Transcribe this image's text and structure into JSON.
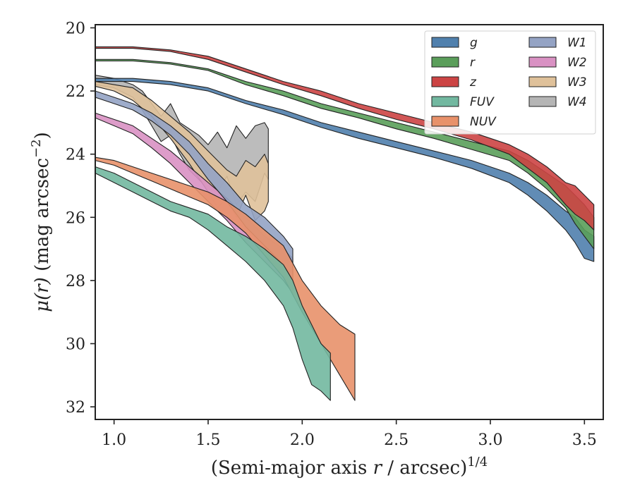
{
  "chart_data": {
    "type": "area",
    "xlabel": "(Semi-major axis r / arcsec)^1/4",
    "xlabel_parts": {
      "pre": "(Semi-major axis ",
      "var": "r",
      "post": " / arcsec)",
      "sup": "1/4"
    },
    "ylabel": "μ(r) (mag arcsec⁻²)",
    "ylabel_parts": {
      "mu": "μ(",
      "var": "r",
      "close": ")",
      "unit": " (mag arcsec",
      "sup": "−2",
      "end": ")"
    },
    "xlim": [
      0.9,
      3.6
    ],
    "ylim": [
      32.4,
      19.9
    ],
    "y_inverted": true,
    "xticks": [
      1.0,
      1.5,
      2.0,
      2.5,
      3.0,
      3.5
    ],
    "xtick_labels": [
      "1.0",
      "1.5",
      "2.0",
      "2.5",
      "3.0",
      "3.5"
    ],
    "yticks": [
      20,
      22,
      24,
      26,
      28,
      30,
      32
    ],
    "ytick_labels": [
      "20",
      "22",
      "24",
      "26",
      "28",
      "30",
      "32"
    ],
    "grid": false,
    "legend_placement": "top-right",
    "legend_columns": 2,
    "series": [
      {
        "name": "g",
        "color": "#5080ad",
        "x": [
          0.9,
          1.1,
          1.3,
          1.5,
          1.7,
          1.9,
          2.1,
          2.3,
          2.5,
          2.7,
          2.9,
          3.1,
          3.2,
          3.3,
          3.4,
          3.45,
          3.5,
          3.55
        ],
        "y_bright": [
          21.6,
          21.6,
          21.7,
          21.9,
          22.3,
          22.6,
          23.0,
          23.3,
          23.6,
          23.9,
          24.2,
          24.6,
          24.9,
          25.3,
          25.8,
          26.0,
          26.4,
          26.6
        ],
        "y_faint": [
          21.7,
          21.7,
          21.8,
          22.0,
          22.4,
          22.75,
          23.15,
          23.5,
          23.8,
          24.1,
          24.45,
          24.9,
          25.3,
          25.8,
          26.4,
          26.8,
          27.3,
          27.4
        ]
      },
      {
        "name": "r",
        "color": "#5a9e5a",
        "x": [
          0.9,
          1.1,
          1.3,
          1.5,
          1.7,
          1.9,
          2.1,
          2.3,
          2.5,
          2.7,
          2.9,
          3.1,
          3.2,
          3.3,
          3.4,
          3.45,
          3.5,
          3.55
        ],
        "y_bright": [
          21.0,
          21.0,
          21.1,
          21.3,
          21.7,
          22.0,
          22.4,
          22.7,
          23.0,
          23.3,
          23.6,
          23.9,
          24.2,
          24.6,
          25.0,
          25.3,
          25.6,
          26.0
        ],
        "y_faint": [
          21.05,
          21.05,
          21.15,
          21.35,
          21.8,
          22.15,
          22.55,
          22.85,
          23.2,
          23.5,
          23.85,
          24.2,
          24.6,
          25.1,
          25.7,
          26.2,
          26.6,
          27.0
        ]
      },
      {
        "name": "z",
        "color": "#cc4444",
        "x": [
          0.9,
          1.1,
          1.3,
          1.5,
          1.7,
          1.9,
          2.1,
          2.3,
          2.5,
          2.7,
          2.9,
          3.1,
          3.2,
          3.3,
          3.4,
          3.45,
          3.5,
          3.55
        ],
        "y_bright": [
          20.6,
          20.6,
          20.7,
          20.9,
          21.3,
          21.7,
          22.0,
          22.4,
          22.7,
          23.0,
          23.3,
          23.7,
          24.0,
          24.4,
          24.9,
          25.0,
          25.3,
          25.6
        ],
        "y_faint": [
          20.65,
          20.65,
          20.75,
          21.0,
          21.4,
          21.8,
          22.15,
          22.55,
          22.9,
          23.2,
          23.55,
          24.0,
          24.45,
          24.9,
          25.6,
          25.9,
          26.1,
          26.4
        ]
      },
      {
        "name": "FUV",
        "color": "#72b8a0",
        "x": [
          0.9,
          1.0,
          1.1,
          1.2,
          1.3,
          1.4,
          1.5,
          1.6,
          1.7,
          1.8,
          1.9,
          1.95,
          2.0,
          2.05,
          2.1,
          2.15
        ],
        "y_bright": [
          24.4,
          24.6,
          24.9,
          25.2,
          25.5,
          25.7,
          25.9,
          26.3,
          26.6,
          27.0,
          27.5,
          28.0,
          28.8,
          29.4,
          30.0,
          30.3
        ],
        "y_faint": [
          24.6,
          24.9,
          25.2,
          25.5,
          25.8,
          26.0,
          26.4,
          26.9,
          27.4,
          28.0,
          28.8,
          29.5,
          30.5,
          31.3,
          31.5,
          31.8
        ]
      },
      {
        "name": "NUV",
        "color": "#e8916a",
        "x": [
          0.9,
          1.0,
          1.1,
          1.2,
          1.3,
          1.4,
          1.5,
          1.6,
          1.7,
          1.8,
          1.9,
          2.0,
          2.1,
          2.2,
          2.28
        ],
        "y_bright": [
          24.1,
          24.2,
          24.4,
          24.6,
          24.8,
          25.0,
          25.2,
          25.5,
          25.9,
          26.4,
          26.9,
          28.0,
          28.8,
          29.4,
          29.7
        ],
        "y_faint": [
          24.2,
          24.35,
          24.6,
          24.85,
          25.1,
          25.35,
          25.6,
          26.0,
          26.5,
          27.2,
          27.9,
          29.0,
          30.0,
          31.0,
          31.8
        ]
      },
      {
        "name": "W1",
        "color": "#94a3c4",
        "x": [
          0.9,
          1.0,
          1.1,
          1.2,
          1.3,
          1.4,
          1.5,
          1.6,
          1.7,
          1.8,
          1.9,
          1.95
        ],
        "y_bright": [
          22.0,
          22.2,
          22.4,
          22.7,
          23.1,
          23.6,
          24.3,
          24.9,
          25.6,
          26.0,
          26.6,
          27.0
        ],
        "y_faint": [
          22.2,
          22.4,
          22.6,
          22.95,
          23.4,
          24.0,
          24.8,
          25.5,
          26.3,
          26.9,
          27.5,
          28.0
        ]
      },
      {
        "name": "W2",
        "color": "#d991c3",
        "x": [
          0.9,
          1.0,
          1.1,
          1.2,
          1.3,
          1.4,
          1.5,
          1.6,
          1.7,
          1.8,
          1.9,
          1.95
        ],
        "y_bright": [
          22.7,
          22.9,
          23.1,
          23.5,
          23.9,
          24.4,
          24.9,
          25.4,
          26.0,
          26.6,
          27.0,
          27.3
        ],
        "y_faint": [
          22.85,
          23.1,
          23.35,
          23.8,
          24.3,
          24.9,
          25.5,
          26.1,
          26.8,
          27.4,
          28.0,
          28.4
        ]
      },
      {
        "name": "W3",
        "color": "#dfc19a",
        "x": [
          0.9,
          1.0,
          1.1,
          1.2,
          1.3,
          1.4,
          1.5,
          1.55,
          1.6,
          1.65,
          1.7,
          1.75,
          1.8,
          1.82
        ],
        "y_bright": [
          21.7,
          21.8,
          21.9,
          22.3,
          22.8,
          23.3,
          23.9,
          24.2,
          24.5,
          24.7,
          24.2,
          24.4,
          24.0,
          24.3
        ],
        "y_faint": [
          21.85,
          22.0,
          22.3,
          22.8,
          23.5,
          24.3,
          25.2,
          25.7,
          25.4,
          26.0,
          25.3,
          26.1,
          25.8,
          25.5
        ]
      },
      {
        "name": "W4",
        "color": "#b5b5b5",
        "x": [
          0.9,
          1.0,
          1.1,
          1.15,
          1.2,
          1.25,
          1.3,
          1.35,
          1.4,
          1.45,
          1.5,
          1.55,
          1.6,
          1.65,
          1.7,
          1.75,
          1.8,
          1.82
        ],
        "y_bright": [
          21.5,
          21.6,
          21.8,
          22.0,
          22.4,
          22.8,
          22.4,
          23.0,
          23.2,
          23.4,
          23.7,
          23.3,
          23.8,
          23.1,
          23.5,
          23.1,
          23.0,
          23.2
        ],
        "y_faint": [
          21.8,
          21.9,
          22.2,
          22.6,
          23.1,
          23.6,
          23.4,
          24.0,
          24.5,
          24.8,
          25.1,
          25.2,
          24.7,
          25.6,
          25.2,
          25.5,
          24.6,
          24.8
        ]
      }
    ],
    "legend_entries": [
      {
        "label": "g",
        "series": 0
      },
      {
        "label": "r",
        "series": 1
      },
      {
        "label": "z",
        "series": 2
      },
      {
        "label": "FUV",
        "series": 3
      },
      {
        "label": "NUV",
        "series": 4
      },
      {
        "label": "W1",
        "series": 5
      },
      {
        "label": "W2",
        "series": 6
      },
      {
        "label": "W3",
        "series": 7
      },
      {
        "label": "W4",
        "series": 8
      }
    ]
  }
}
